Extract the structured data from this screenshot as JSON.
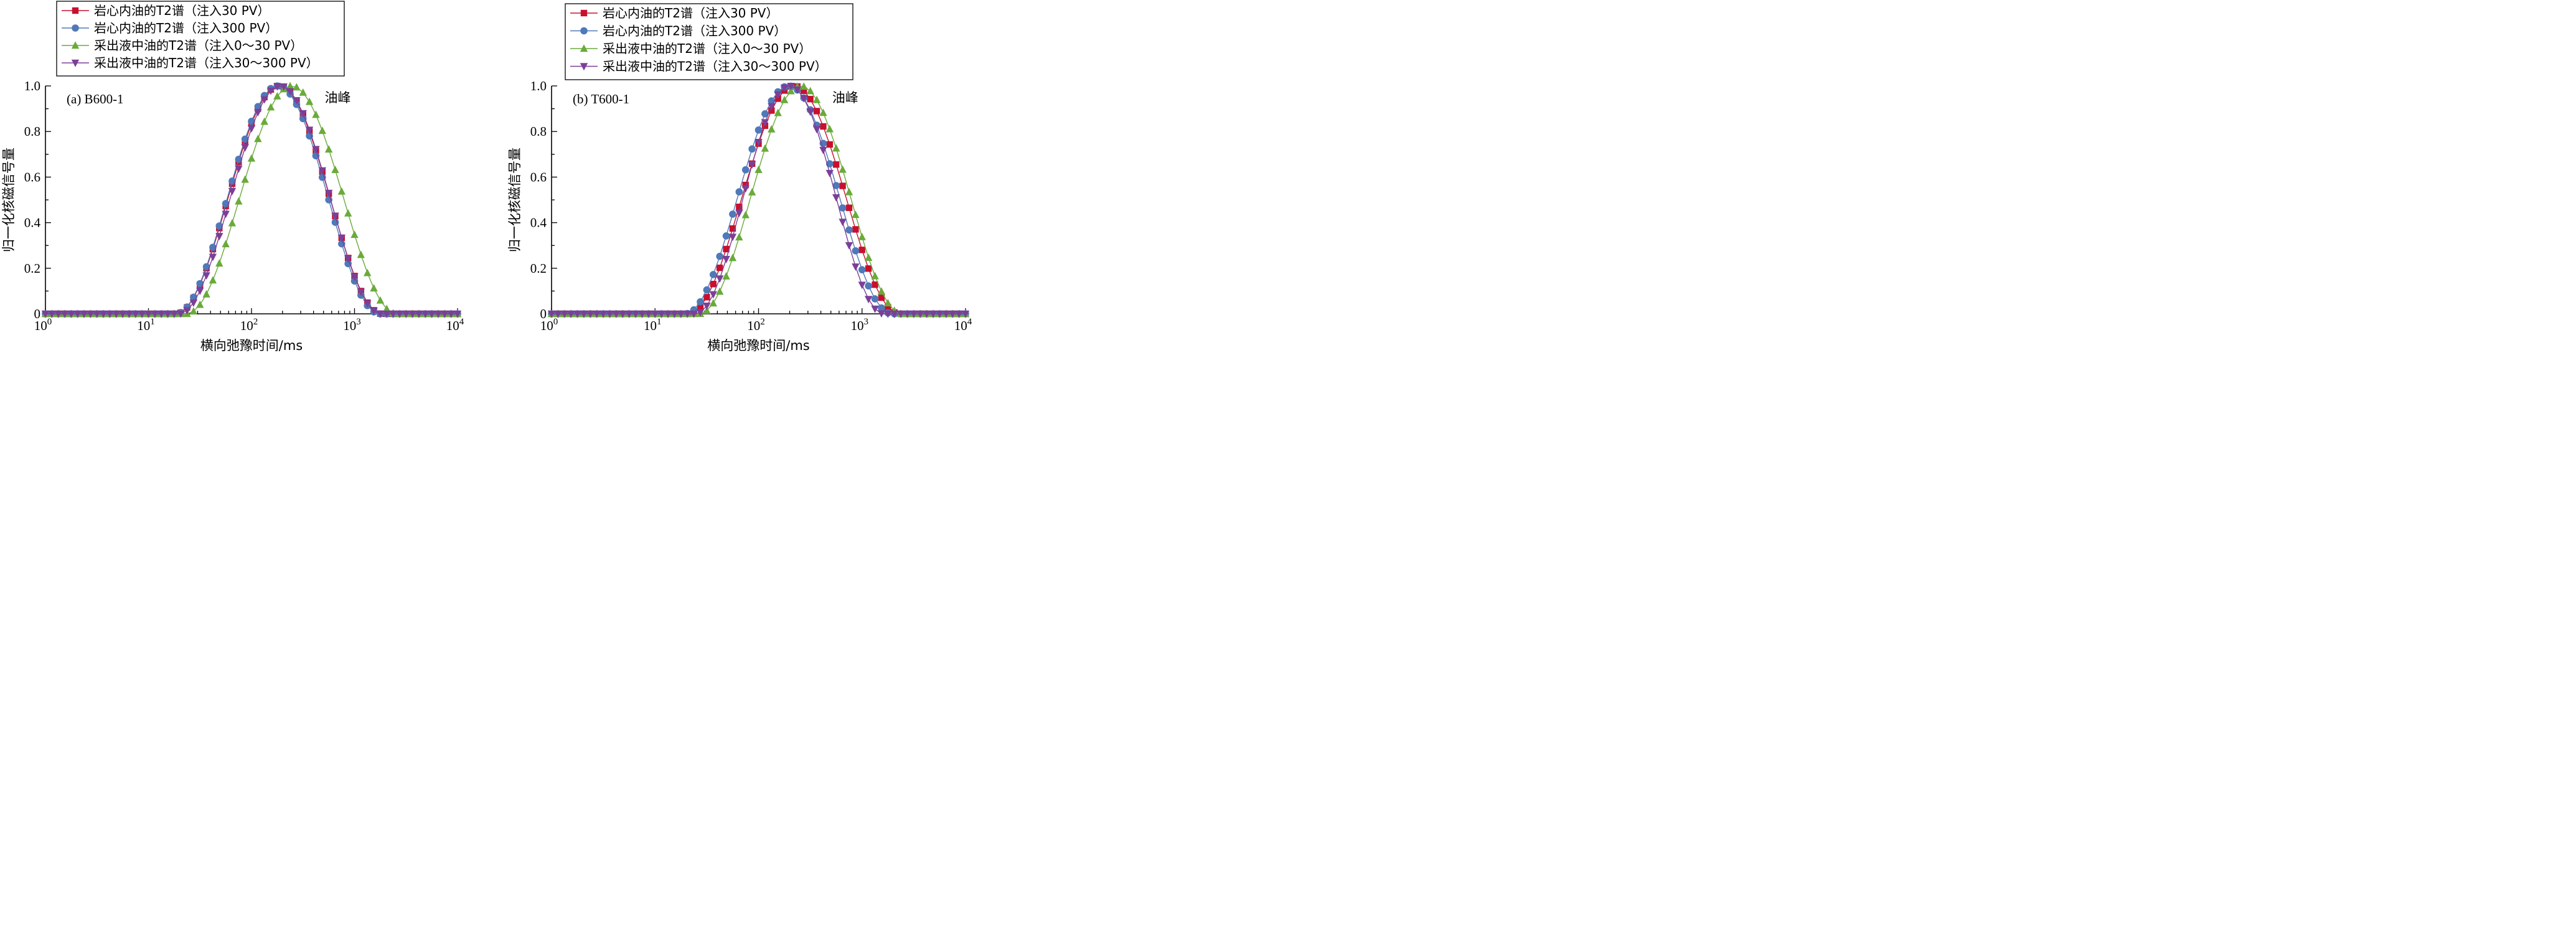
{
  "chart_data": [
    {
      "type": "line",
      "panel_label": "(a) B600-1",
      "annotation": "油峰",
      "xlabel": "横向弛豫时间/ms",
      "ylabel": "归一化核磁信号量",
      "xscale": "log",
      "xlim": [
        1,
        10000
      ],
      "ylim": [
        0,
        1.0
      ],
      "xticks": [
        "10^0",
        "10^1",
        "10^2",
        "10^3",
        "10^4"
      ],
      "yticks": [
        "0",
        "0.2",
        "0.4",
        "0.6",
        "0.8",
        "1.0"
      ],
      "legend_position": "top-left",
      "series": [
        {
          "name": "岩心内油的T2谱（注入30 PV）",
          "color": "#c8102e",
          "marker": "square",
          "center": 185,
          "width": 1.0
        },
        {
          "name": "岩心内油的T2谱（注入300 PV）",
          "color": "#4f79b8",
          "marker": "circle",
          "center": 180,
          "width": 0.99
        },
        {
          "name": "采出液中油的T2谱（注入0～30 PV）",
          "color": "#6aaa3a",
          "marker": "triangle-up",
          "center": 245,
          "width": 1.02
        },
        {
          "name": "采出液中油的T2谱（注入30～300 PV）",
          "color": "#7b3f98",
          "marker": "triangle-down",
          "center": 190,
          "width": 0.98
        }
      ]
    },
    {
      "type": "line",
      "panel_label": "(b) T600-1",
      "annotation": "油峰",
      "xlabel": "横向弛豫时间/ms",
      "ylabel": "归一化核磁信号量",
      "xscale": "log",
      "xlim": [
        1,
        10000
      ],
      "ylim": [
        0,
        1.0
      ],
      "xticks": [
        "10^0",
        "10^1",
        "10^2",
        "10^3",
        "10^4"
      ],
      "yticks": [
        "0",
        "0.2",
        "0.4",
        "0.6",
        "0.8",
        "1.0"
      ],
      "legend_position": "top-left",
      "series": [
        {
          "name": "岩心内油的T2谱（注入30 PV）",
          "color": "#c8102e",
          "marker": "square",
          "center": 220,
          "width": 1.02
        },
        {
          "name": "岩心内油的T2谱（注入300 PV）",
          "color": "#4f79b8",
          "marker": "circle",
          "center": 195,
          "width": 1.0
        },
        {
          "name": "采出液中油的T2谱（注入0～30 PV）",
          "color": "#6aaa3a",
          "marker": "triangle-up",
          "center": 255,
          "width": 0.98
        },
        {
          "name": "采出液中油的T2谱（注入30～300 PV）",
          "color": "#7b3f98",
          "marker": "triangle-down",
          "center": 200,
          "width": 0.91
        }
      ]
    }
  ]
}
